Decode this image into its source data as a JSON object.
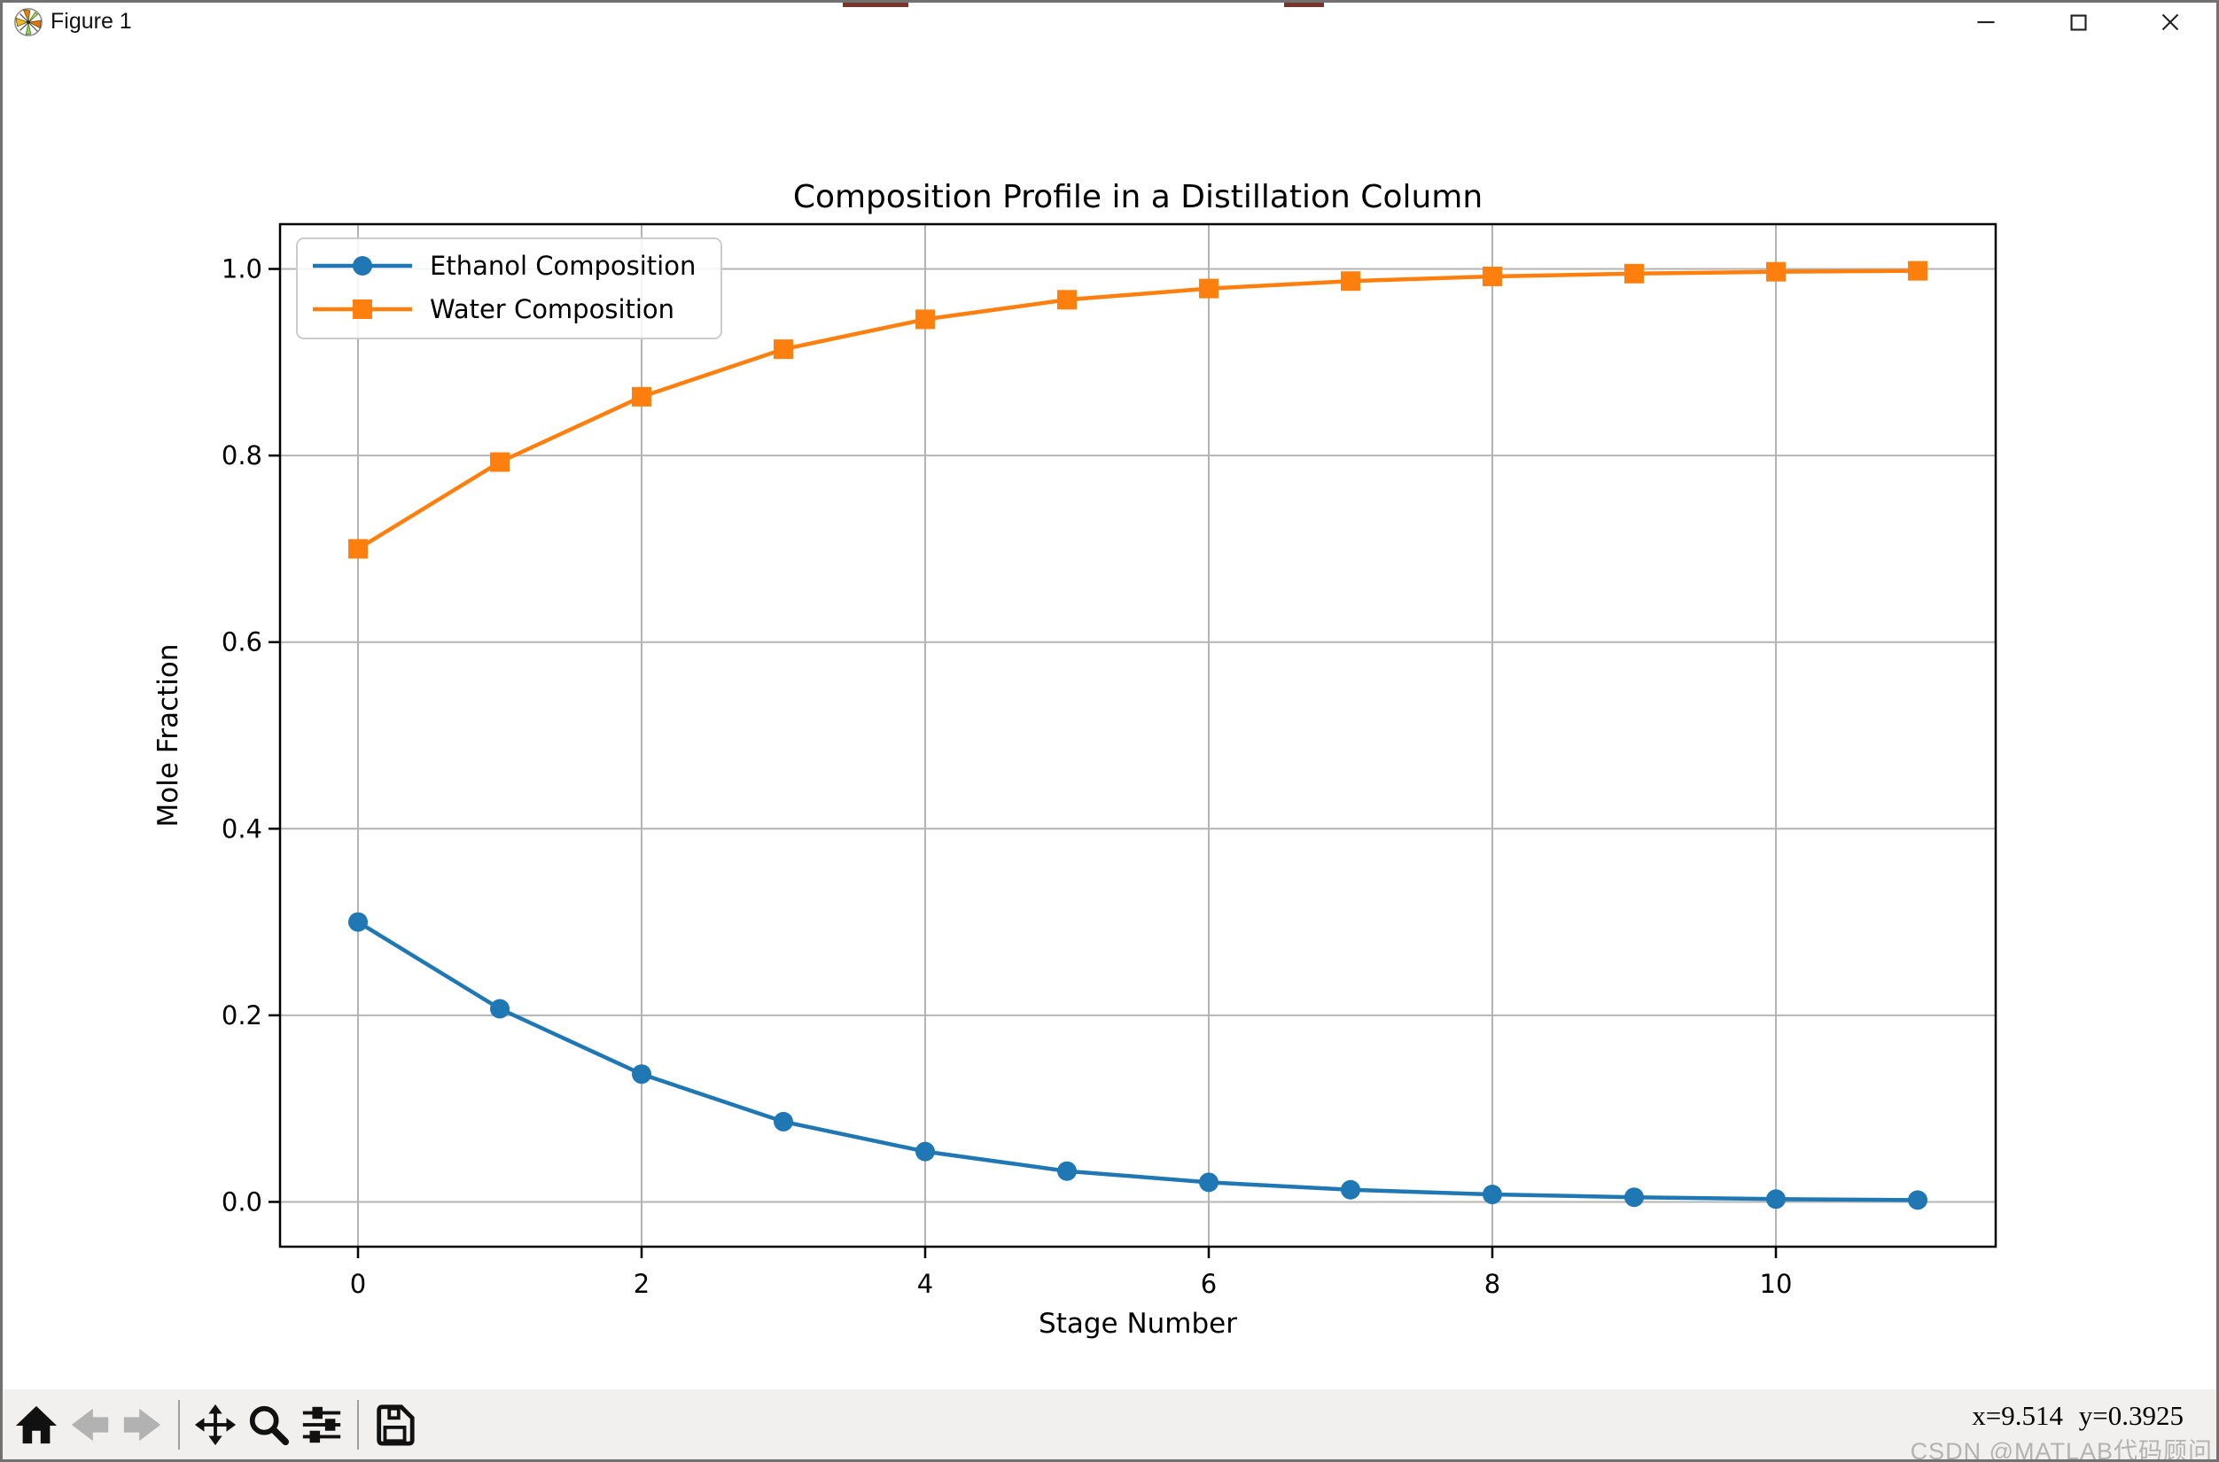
{
  "window": {
    "title": "Figure 1",
    "controls": {
      "minimize": "Minimize",
      "maximize": "Maximize",
      "close": "Close"
    }
  },
  "chart_data": {
    "type": "line",
    "title": "Composition Profile in a Distillation Column",
    "xlabel": "Stage Number",
    "ylabel": "Mole Fraction",
    "x": [
      0,
      1,
      2,
      3,
      4,
      5,
      6,
      7,
      8,
      9,
      10,
      11
    ],
    "series": [
      {
        "name": "Ethanol Composition",
        "color": "#1f77b4",
        "marker": "circle",
        "values": [
          0.3,
          0.207,
          0.137,
          0.086,
          0.054,
          0.033,
          0.021,
          0.013,
          0.008,
          0.005,
          0.003,
          0.002
        ]
      },
      {
        "name": "Water Composition",
        "color": "#ff7f0e",
        "marker": "square",
        "values": [
          0.7,
          0.793,
          0.863,
          0.914,
          0.946,
          0.967,
          0.979,
          0.987,
          0.992,
          0.995,
          0.997,
          0.998
        ]
      }
    ],
    "xlim": [
      -0.55,
      11.55
    ],
    "ylim": [
      -0.048,
      1.048
    ],
    "x_ticks": [
      0,
      2,
      4,
      6,
      8,
      10
    ],
    "x_tick_labels": [
      "0",
      "2",
      "4",
      "6",
      "8",
      "10"
    ],
    "y_ticks": [
      0.0,
      0.2,
      0.4,
      0.6,
      0.8,
      1.0
    ],
    "y_tick_labels": [
      "0.0",
      "0.2",
      "0.4",
      "0.6",
      "0.8",
      "1.0"
    ],
    "grid": true,
    "grid_color": "#b4b4b4",
    "legend_position": "upper left"
  },
  "toolbar": {
    "icons": [
      "home",
      "back",
      "forward",
      "pan",
      "zoom",
      "subplots",
      "save"
    ],
    "status": "x=9.514  y=0.3925",
    "watermark": "CSDN @MATLAB代码顾问"
  },
  "colors": {
    "ethanol": "#1f77b4",
    "water": "#ff7f0e",
    "toolbar_bg": "#f1f0ef",
    "disabled_icon": "#b2b2b2",
    "border_red_accent": "#7a352a"
  }
}
